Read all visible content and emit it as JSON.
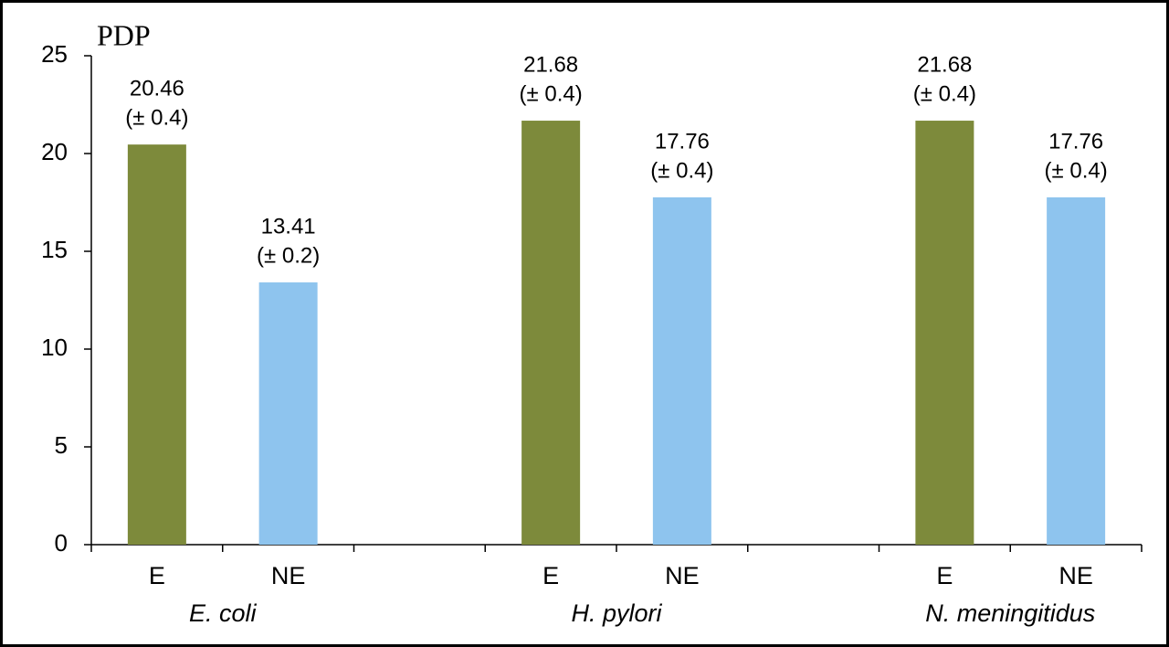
{
  "chart_data": {
    "type": "bar",
    "title": "PDP",
    "categories": [
      "E",
      "NE",
      null,
      "E",
      "NE",
      null,
      "E",
      "NE"
    ],
    "values": [
      20.46,
      13.41,
      null,
      21.68,
      17.76,
      null,
      21.68,
      17.76
    ],
    "value_labels": [
      "20.46",
      "13.41",
      null,
      "21.68",
      "17.76",
      null,
      "21.68",
      "17.76"
    ],
    "error_labels": [
      "(± 0.4)",
      "(± 0.2)",
      null,
      "(± 0.4)",
      "(± 0.4)",
      null,
      "(± 0.4)",
      "(± 0.4)"
    ],
    "colors": [
      "#7d8a3b",
      "#8ec4ee",
      null,
      "#7d8a3b",
      "#8ec4ee",
      null,
      "#7d8a3b",
      "#8ec4ee"
    ],
    "groups": [
      "E. coli",
      "H. pylori",
      "N. meningitidus"
    ],
    "ylim": [
      0,
      25
    ],
    "yticks": [
      0,
      5,
      10,
      15,
      20,
      25
    ],
    "grid": false
  }
}
